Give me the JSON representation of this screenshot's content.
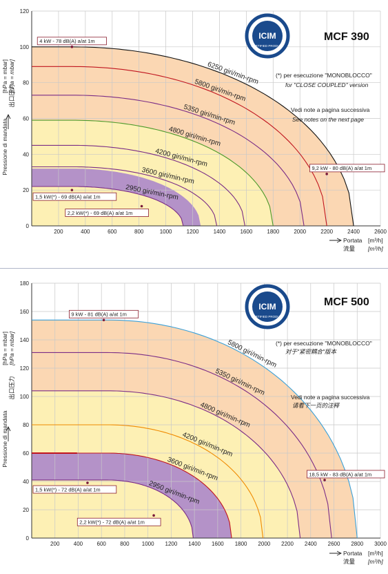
{
  "charts": [
    {
      "model": "MCF 390",
      "ylabel": [
        "Pressione di mandata",
        "出口压力",
        "[hPa = mbar]",
        "[hPa = mbar]"
      ],
      "xlabel": [
        "Portata",
        "[m³/h]",
        "流量",
        "[m³/h]"
      ],
      "notes": [
        "(*) per esecuzione \"MONOBLOCCO\"",
        "for \"CLOSE COUPLED\" version",
        "Vedi note a pagina successiva",
        "See notes on the next page"
      ],
      "logo": {
        "text": "ICIM",
        "subtext": "CERTIFIED PRODUCT"
      },
      "point_labels": [
        {
          "text": "4 kW - 78 dB(A) a/at 1m",
          "x": 300,
          "y": 100
        },
        {
          "text": "9,2 kW - 80 dB(A) a/at 1m",
          "x": 2200,
          "y": 29
        },
        {
          "text": "1,5 kW(*) - 69 dB(A) a/at 1m",
          "x": 300,
          "y": 20
        },
        {
          "text": "2,2 kW(*) - 69 dB(A) a/at 1m",
          "x": 820,
          "y": 11
        }
      ]
    },
    {
      "model": "MCF 500",
      "ylabel": [
        "Pressione di mandata",
        "出口压力",
        "[hPa = mbar]",
        "[hPa = mbar]"
      ],
      "xlabel": [
        "Portata",
        "[m³/h]",
        "流量",
        "[m³/h]"
      ],
      "notes": [
        "(*) per esecuzione \"MONOBLOCCO\"",
        "对于\"紧密耦合\"版本",
        "Vedi note a pagina successiva",
        "请看下一页的注释"
      ],
      "logo": {
        "text": "ICIM",
        "subtext": "CERTIFIED PRODUCT"
      },
      "point_labels": [
        {
          "text": "9 kW - 81 dB(A) a/at 1m",
          "x": 620,
          "y": 154
        },
        {
          "text": "18,5 kW - 83 dB(A) a/at 1m",
          "x": 2520,
          "y": 41
        },
        {
          "text": "1,5 kW(*) - 72 dB(A) a/at 1m",
          "x": 480,
          "y": 39
        },
        {
          "text": "2,2 kW(*) - 72 dB(A) a/at 1m",
          "x": 1050,
          "y": 16
        }
      ]
    }
  ],
  "colors": {
    "orange_fill": "#fbd7b3",
    "yellow_fill": "#fdf0b4",
    "purple_fill": "#b492c8",
    "grid": "#c8c8c8",
    "curve_black": "#111111",
    "curve_red": "#c0141e",
    "curve_purple": "#7a2c86",
    "curve_green": "#4c9a2a",
    "curve_orange": "#f08a00",
    "curve_blue": "#3aa0d8"
  },
  "chart_data": [
    {
      "type": "line",
      "title": "MCF 390",
      "xlabel": "Portata [m³/h] / 流量 [m³/h]",
      "ylabel": "Pressione di mandata [hPa = mbar] / 出口压力 [hPa = mbar]",
      "xlim": [
        0,
        2600
      ],
      "ylim": [
        0,
        120
      ],
      "xticks": [
        200,
        400,
        600,
        800,
        1000,
        1200,
        1400,
        1600,
        1800,
        2000,
        2200,
        2400,
        2600
      ],
      "yticks": [
        0,
        20,
        40,
        60,
        80,
        100,
        120
      ],
      "grid": true,
      "series": [
        {
          "name": "6250 giri/min-rpm",
          "p0": 100,
          "flat": 300,
          "qmax": 2400,
          "color": "curve_black"
        },
        {
          "name": "5800 giri/min-rpm",
          "p0": 89,
          "flat": 300,
          "qmax": 2200,
          "color": "curve_red"
        },
        {
          "name": "5350 giri/min-rpm",
          "p0": 73,
          "flat": 300,
          "qmax": 2030,
          "color": "curve_purple"
        },
        {
          "name": "4800 giri/min-rpm",
          "p0": 59,
          "flat": 300,
          "qmax": 1800,
          "color": "curve_green"
        },
        {
          "name": "4200 giri/min-rpm",
          "p0": 45,
          "flat": 300,
          "qmax": 1590,
          "color": "curve_purple"
        },
        {
          "name": "3600 giri/min-rpm",
          "p0": 33,
          "flat": 300,
          "qmax": 1380,
          "color": "curve_purple"
        },
        {
          "name": "2950 giri/min-rpm",
          "p0": 22,
          "flat": 300,
          "qmax": 1130,
          "color": "curve_purple"
        }
      ],
      "regions": [
        {
          "from_series": 0,
          "color": "orange_fill"
        },
        {
          "from_series": 3,
          "color": "yellow_fill"
        },
        {
          "band": [
            5,
            6
          ],
          "color": "purple_fill",
          "band_outer": {
            "p0": 32,
            "flat": 300,
            "qmax": 1260
          }
        }
      ]
    },
    {
      "type": "line",
      "title": "MCF 500",
      "xlabel": "Portata [m³/h] / 流量 [m³/h]",
      "ylabel": "Pressione di mandata [hPa = mbar] / 出口压力 [hPa = mbar]",
      "xlim": [
        0,
        3000
      ],
      "ylim": [
        0,
        180
      ],
      "xticks": [
        200,
        400,
        600,
        800,
        1000,
        1200,
        1400,
        1600,
        1800,
        2000,
        2200,
        2400,
        2600,
        2800,
        3000
      ],
      "yticks": [
        0,
        20,
        40,
        60,
        80,
        100,
        120,
        140,
        160,
        180
      ],
      "grid": true,
      "series": [
        {
          "name": "5800 giri/min-rpm",
          "p0": 154,
          "flat": 650,
          "qmax": 2800,
          "color": "curve_blue"
        },
        {
          "name": "5350 giri/min-rpm",
          "p0": 131,
          "flat": 650,
          "qmax": 2580,
          "color": "curve_purple"
        },
        {
          "name": "4800 giri/min-rpm",
          "p0": 104,
          "flat": 650,
          "qmax": 2310,
          "color": "curve_purple"
        },
        {
          "name": "4200 giri/min-rpm",
          "p0": 80,
          "flat": 650,
          "qmax": 1990,
          "color": "curve_orange"
        },
        {
          "name": "3600 giri/min-rpm",
          "p0": 60,
          "flat": 650,
          "qmax": 1720,
          "color": "curve_red"
        },
        {
          "name": "2950 giri/min-rpm",
          "p0": 41,
          "flat": 650,
          "qmax": 1390,
          "color": "curve_purple"
        }
      ],
      "regions": [
        {
          "from_series": 0,
          "color": "orange_fill"
        },
        {
          "from_series": 2,
          "color": "yellow_fill"
        },
        {
          "band": [
            4,
            5
          ],
          "color": "purple_fill",
          "band_outer": {
            "p0": 60,
            "flat": 650,
            "qmax": 1720
          }
        }
      ]
    }
  ]
}
